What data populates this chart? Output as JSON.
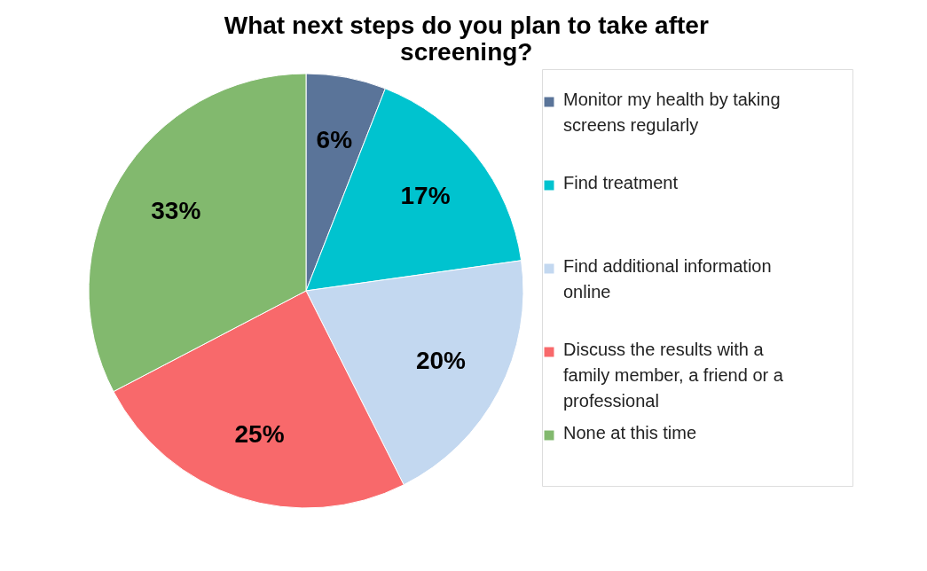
{
  "chart_data": {
    "type": "pie",
    "title": "What next steps do you plan to take after screening?",
    "categories": [
      "Monitor my health by taking screens regularly",
      "Find treatment",
      "Find additional information online",
      "Discuss the results with a family member, a friend or a professional",
      "None at this time"
    ],
    "values": [
      6,
      17,
      20,
      25,
      33
    ],
    "colors": [
      "#5a7499",
      "#00c3cf",
      "#c3d8f0",
      "#f8696b",
      "#82b96e"
    ],
    "value_labels": [
      "6%",
      "17%",
      "20%",
      "25%",
      "33%"
    ],
    "legend": "right"
  }
}
